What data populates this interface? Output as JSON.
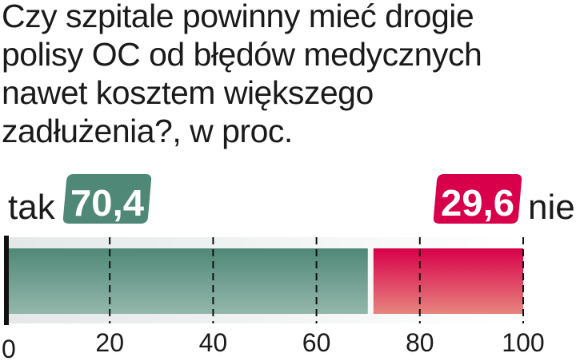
{
  "chart_data": {
    "type": "bar",
    "orientation": "horizontal-stacked",
    "title_lines": [
      "Czy szpitale powinny mieć drogie",
      "polisy OC od błędów medycznych",
      "nawet kosztem większego",
      "zadłużenia?, w proc."
    ],
    "series": [
      {
        "name": "tak",
        "value": 70.4,
        "label": "70,4",
        "color": "#4f8876"
      },
      {
        "name": "nie",
        "value": 29.6,
        "label": "29,6",
        "color": "#d8004a"
      }
    ],
    "xlim": [
      0,
      100
    ],
    "ticks": [
      0,
      20,
      40,
      60,
      80,
      100
    ],
    "tick_labels": [
      "0",
      "20",
      "40",
      "60",
      "80",
      "100"
    ],
    "grid": "dashed vertical"
  }
}
